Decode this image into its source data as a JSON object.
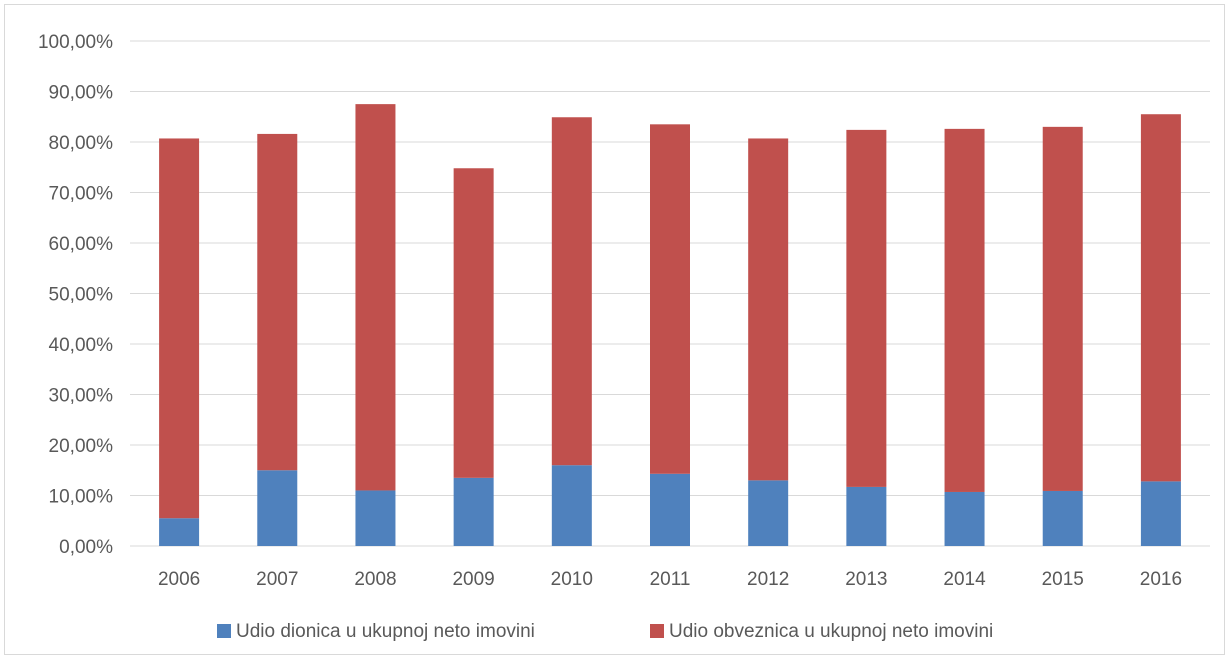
{
  "chart_data": {
    "type": "bar",
    "stacked": true,
    "categories": [
      "2006",
      "2007",
      "2008",
      "2009",
      "2010",
      "2011",
      "2012",
      "2013",
      "2014",
      "2015",
      "2016"
    ],
    "series": [
      {
        "name": "Udio dionica u ukupnoj neto imovini",
        "color": "#4f81bd",
        "values": [
          5.5,
          15.0,
          11.0,
          13.5,
          16.0,
          14.3,
          13.0,
          11.7,
          10.7,
          10.9,
          12.8
        ]
      },
      {
        "name": "Udio obveznica u ukupnoj neto imovini",
        "color": "#c0504d",
        "values": [
          75.2,
          66.6,
          76.5,
          61.3,
          68.9,
          69.2,
          67.7,
          70.7,
          71.9,
          72.1,
          72.7
        ]
      }
    ],
    "ylim": [
      0,
      100
    ],
    "yticks": [
      "0,00%",
      "10,00%",
      "20,00%",
      "30,00%",
      "40,00%",
      "50,00%",
      "60,00%",
      "70,00%",
      "80,00%",
      "90,00%",
      "100,00%"
    ],
    "grid": true,
    "legend_position": "bottom"
  }
}
